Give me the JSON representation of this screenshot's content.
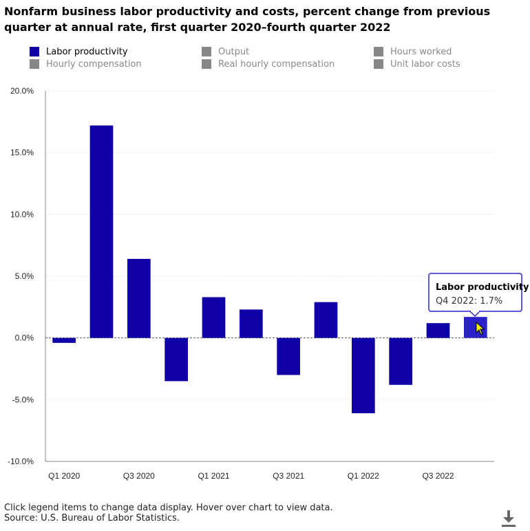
{
  "title": "Nonfarm business labor productivity and costs, percent change from previous quarter at annual rate, first quarter 2020–fourth quarter 2022",
  "legend": [
    {
      "label": "Labor productivity",
      "color": "#0f00a8",
      "active": true
    },
    {
      "label": "Output",
      "color": "#888888",
      "active": false
    },
    {
      "label": "Hours worked",
      "color": "#888888",
      "active": false
    },
    {
      "label": "Hourly compensation",
      "color": "#888888",
      "active": false
    },
    {
      "label": "Real hourly compensation",
      "color": "#888888",
      "active": false
    },
    {
      "label": "Unit labor costs",
      "color": "#888888",
      "active": false
    }
  ],
  "chart_data": {
    "type": "bar",
    "categories": [
      "Q1 2020",
      "Q2 2020",
      "Q3 2020",
      "Q4 2020",
      "Q1 2021",
      "Q2 2021",
      "Q3 2021",
      "Q4 2021",
      "Q1 2022",
      "Q2 2022",
      "Q3 2022",
      "Q4 2022"
    ],
    "x_tick_labels": [
      "Q1 2020",
      "Q3 2020",
      "Q1 2021",
      "Q3 2021",
      "Q1 2022",
      "Q3 2022"
    ],
    "series": [
      {
        "name": "Labor productivity",
        "values": [
          -0.4,
          17.2,
          6.4,
          -3.5,
          3.3,
          2.3,
          -3.0,
          2.9,
          -6.1,
          -3.8,
          1.2,
          1.7
        ]
      }
    ],
    "ylim": [
      -10,
      20
    ],
    "y_ticks": [
      -10,
      -5,
      0,
      5,
      10,
      15,
      20
    ],
    "y_tick_labels": [
      "-10.0%",
      "-5.0%",
      "0.0%",
      "5.0%",
      "10.0%",
      "15.0%",
      "20.0%"
    ],
    "grid": true,
    "bar_color": "#0f00a8",
    "highlight_color": "#2a22c8",
    "highlight_index": 11,
    "tooltip": {
      "title": "Labor productivity",
      "text": "Q4 2022: 1.7%"
    }
  },
  "footer": {
    "note": "Click legend items to change data display. Hover over chart to view data.",
    "source": "Source: U.S. Bureau of Labor Statistics."
  },
  "icons": {
    "download": "download-icon",
    "cursor": "pointer-cursor-icon"
  }
}
